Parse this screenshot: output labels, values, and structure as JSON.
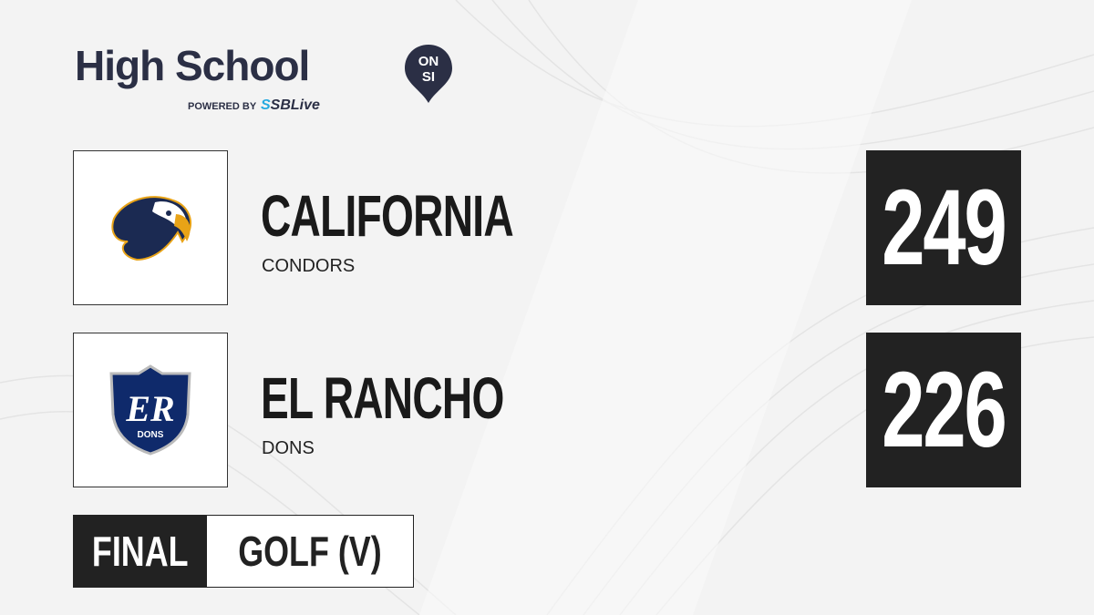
{
  "brand": {
    "title": "High School",
    "badge_top": "ON",
    "badge_bottom": "SI",
    "powered_by": "POWERED BY",
    "partner_prefix": "S",
    "partner": "SBLive"
  },
  "teams": [
    {
      "name": "CALIFORNIA",
      "mascot": "CONDORS",
      "score": "249",
      "logo_icon": "condor-logo"
    },
    {
      "name": "EL RANCHO",
      "mascot": "DONS",
      "score": "226",
      "logo_icon": "er-shield-logo",
      "logo_text": "ER",
      "logo_subtext": "DONS"
    }
  ],
  "status": {
    "label": "FINAL",
    "sport": "GOLF (V)"
  },
  "colors": {
    "dark": "#222222",
    "brand_navy": "#2b2f45",
    "accent": "#25a9e0",
    "shield": "#0f2a6b",
    "condor_gold": "#e8a317"
  }
}
